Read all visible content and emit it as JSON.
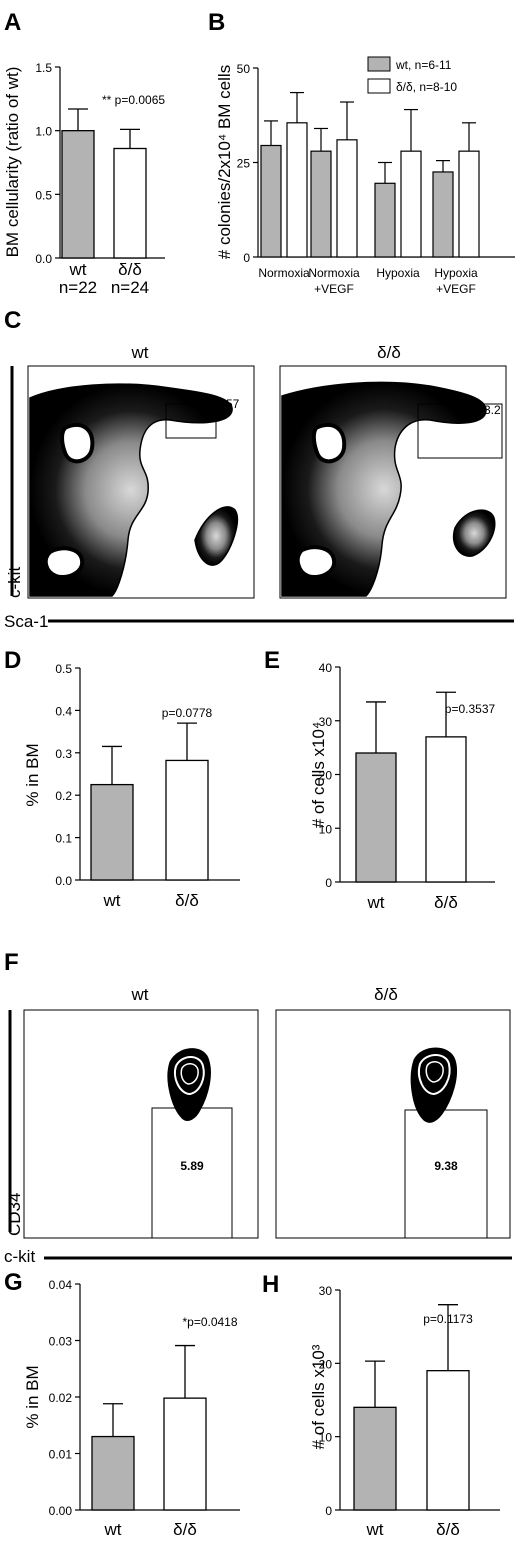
{
  "panels": {
    "A": "A",
    "B": "B",
    "C": "C",
    "D": "D",
    "E": "E",
    "F": "F",
    "G": "G",
    "H": "H"
  },
  "colors": {
    "wt_fill": "#b3b3b3",
    "dd_fill": "#ffffff",
    "stroke": "#000000"
  },
  "chart_data": [
    {
      "panel": "A",
      "type": "bar",
      "ylabel": "BM cellularity (ratio of wt)",
      "ylim": [
        0.0,
        1.5
      ],
      "yticks": [
        "0.0",
        "0.5",
        "1.0",
        "1.5"
      ],
      "categories": [
        "wt",
        "δ/δ"
      ],
      "category_sub": [
        "n=22",
        "n=24"
      ],
      "values": [
        1.0,
        0.86
      ],
      "errors": [
        0.17,
        0.15
      ],
      "annotation": "** p=0.0065"
    },
    {
      "panel": "B",
      "type": "bar",
      "ylabel": "# colonies/2x10⁴ BM cells",
      "ylim": [
        0,
        50
      ],
      "yticks": [
        "0",
        "25",
        "50"
      ],
      "groups": [
        "Normoxia",
        "Normoxia\n+VEGF",
        "Hypoxia",
        "Hypoxia\n+VEGF"
      ],
      "series": [
        {
          "name": "wt, n=6-11",
          "values": [
            29.5,
            28,
            19.5,
            22.5
          ],
          "errors": [
            6.5,
            6,
            5.5,
            3
          ]
        },
        {
          "name": "δ/δ, n=8-10",
          "values": [
            35.5,
            31,
            28,
            28
          ],
          "errors": [
            8,
            10,
            11,
            7.5
          ]
        }
      ]
    },
    {
      "panel": "D",
      "type": "bar",
      "ylabel": "% in BM",
      "ylim": [
        0.0,
        0.5
      ],
      "yticks": [
        "0.0",
        "0.1",
        "0.2",
        "0.3",
        "0.4",
        "0.5"
      ],
      "categories": [
        "wt",
        "δ/δ"
      ],
      "values": [
        0.225,
        0.282
      ],
      "errors": [
        0.09,
        0.088
      ],
      "annotation": "p=0.0778"
    },
    {
      "panel": "E",
      "type": "bar",
      "ylabel": "# of cells x10⁴",
      "ylim": [
        0,
        40
      ],
      "yticks": [
        "0",
        "10",
        "20",
        "30",
        "40"
      ],
      "categories": [
        "wt",
        "δ/δ"
      ],
      "values": [
        24,
        27
      ],
      "errors": [
        9.5,
        8.3
      ],
      "annotation": "p=0.3537"
    },
    {
      "panel": "G",
      "type": "bar",
      "ylabel": "% in BM",
      "ylim": [
        0.0,
        0.04
      ],
      "yticks": [
        "0.00",
        "0.01",
        "0.02",
        "0.03",
        "0.04"
      ],
      "categories": [
        "wt",
        "δ/δ"
      ],
      "values": [
        0.013,
        0.0198
      ],
      "errors": [
        0.0058,
        0.0093
      ],
      "annotation": "*p=0.0418"
    },
    {
      "panel": "H",
      "type": "bar",
      "ylabel": "# of cells x10³",
      "ylim": [
        0,
        30
      ],
      "yticks": [
        "0",
        "10",
        "20",
        "30"
      ],
      "categories": [
        "wt",
        "δ/δ"
      ],
      "values": [
        14,
        19
      ],
      "errors": [
        6.3,
        9
      ],
      "annotation": "p=0.1173"
    }
  ],
  "flow_C": {
    "titles": [
      "wt",
      "δ/δ"
    ],
    "gate_values": [
      "1.57",
      "3.2"
    ],
    "ylabel": "c-kit",
    "xlabel": "Sca-1"
  },
  "flow_F": {
    "titles": [
      "wt",
      "δ/δ"
    ],
    "gate_values": [
      "5.89",
      "9.38"
    ],
    "ylabel": "CD34",
    "xlabel": "c-kit"
  }
}
